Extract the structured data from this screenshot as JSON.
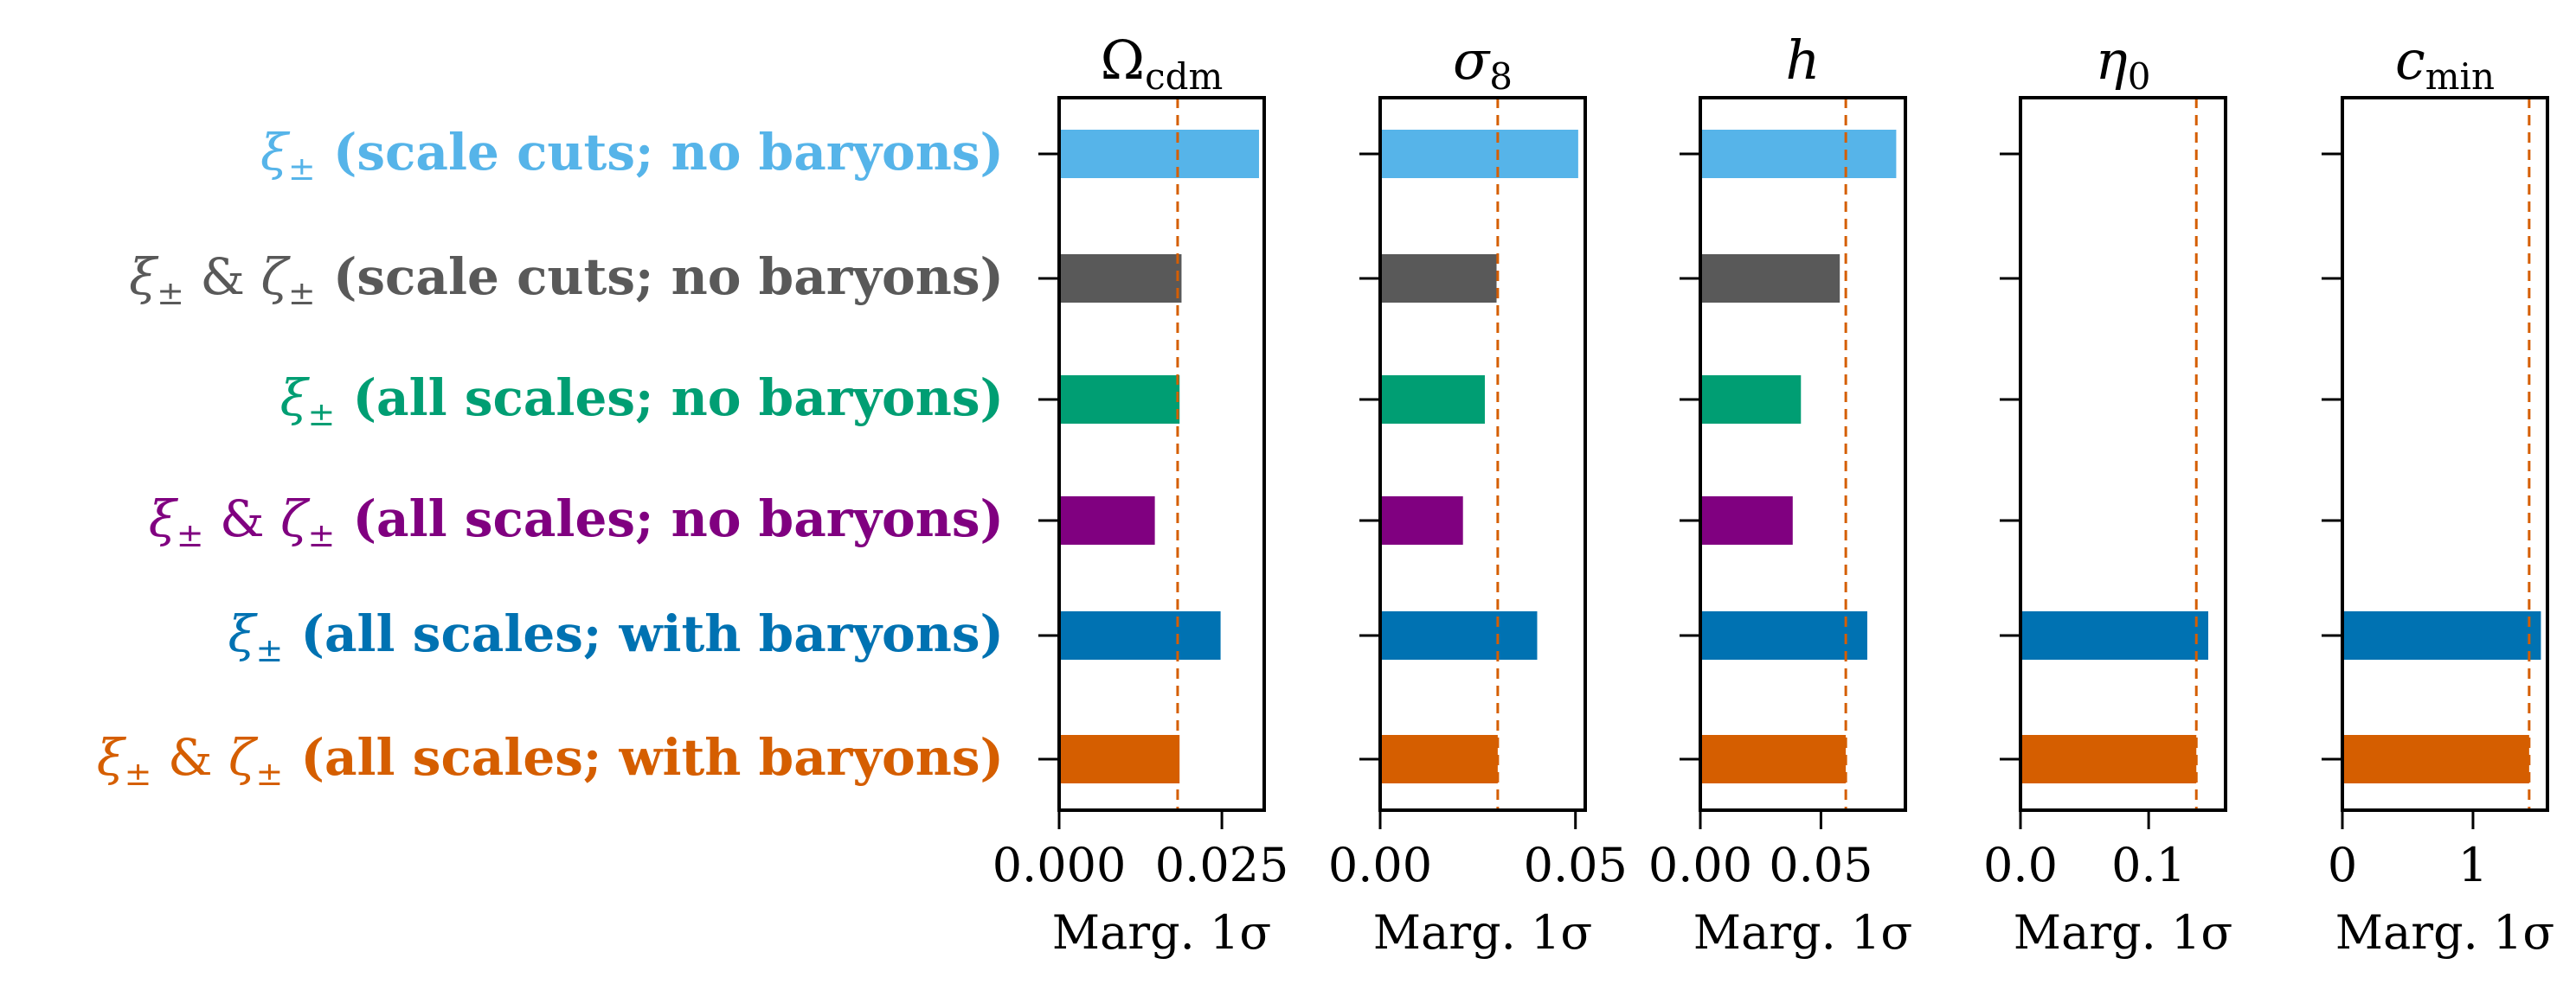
{
  "chart_data": {
    "type": "bar",
    "orientation": "horizontal",
    "xlabel": "Marg. 1σ",
    "categories": [
      {
        "main": "ξ",
        "sub": "±",
        "text": " (scale cuts; no baryons)",
        "color": "#56b4e9"
      },
      {
        "main": "ξ",
        "sub": "±",
        "main2": "ζ",
        "sub2": "±",
        "amp": " & ",
        "text": " (scale cuts; no baryons)",
        "color": "#595959"
      },
      {
        "main": "ξ",
        "sub": "±",
        "text": " (all scales; no baryons)",
        "color": "#009e73"
      },
      {
        "main": "ξ",
        "sub": "±",
        "main2": "ζ",
        "sub2": "±",
        "amp": " & ",
        "text": " (all scales; no baryons)",
        "color": "#800080"
      },
      {
        "main": "ξ",
        "sub": "±",
        "text": " (all scales; with baryons)",
        "color": "#0072b2"
      },
      {
        "main": "ξ",
        "sub": "±",
        "main2": "ζ",
        "sub2": "±",
        "amp": " & ",
        "text": " (all scales; with baryons)",
        "color": "#d55e00"
      }
    ],
    "reference_line_color": "#d55e00",
    "panels": [
      {
        "title_main": "Ω",
        "title_sub": "cdm",
        "xlim": [
          0,
          0.0315
        ],
        "ticks": [
          0.0,
          0.025
        ],
        "tick_labels": [
          "0.000",
          "0.025"
        ],
        "values": [
          0.0307,
          0.0188,
          0.0185,
          0.0147,
          0.0248,
          0.0185
        ],
        "reference": 0.0182
      },
      {
        "title_main": "σ",
        "title_sub": "8",
        "xlim": [
          0,
          0.0525
        ],
        "ticks": [
          0.0,
          0.05
        ],
        "tick_labels": [
          "0.00",
          "0.05"
        ],
        "values": [
          0.0507,
          0.0298,
          0.0268,
          0.0212,
          0.0402,
          0.0301
        ],
        "reference": 0.0301
      },
      {
        "title_main": "h",
        "title_sub": "",
        "xlim": [
          0,
          0.085
        ],
        "ticks": [
          0.0,
          0.05
        ],
        "tick_labels": [
          "0.00",
          "0.05"
        ],
        "values": [
          0.0812,
          0.0578,
          0.0417,
          0.0383,
          0.0692,
          0.0603
        ],
        "reference": 0.0603
      },
      {
        "title_main": "η",
        "title_sub": "0",
        "xlim": [
          0,
          0.16
        ],
        "ticks": [
          0.0,
          0.1
        ],
        "tick_labels": [
          "0.0",
          "0.1"
        ],
        "values": [
          null,
          null,
          null,
          null,
          0.1465,
          0.1372
        ],
        "reference": 0.1372
      },
      {
        "title_main": "c",
        "title_sub": "min",
        "xlim": [
          0,
          1.57
        ],
        "ticks": [
          0,
          1
        ],
        "tick_labels": [
          "0",
          "1"
        ],
        "values": [
          null,
          null,
          null,
          null,
          1.52,
          1.43
        ],
        "reference": 1.43
      }
    ]
  }
}
